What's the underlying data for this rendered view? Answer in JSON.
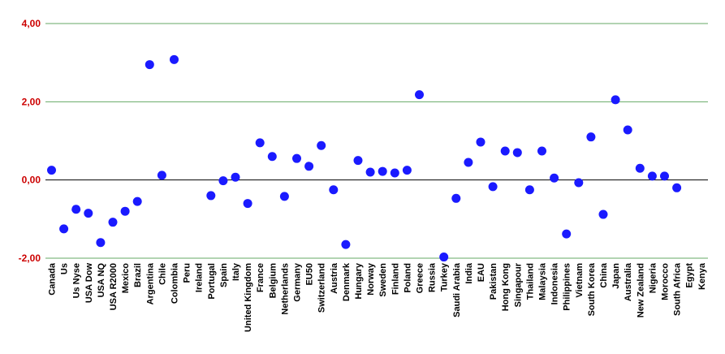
{
  "chart_data": {
    "type": "scatter",
    "ylim": [
      -2,
      4
    ],
    "yticks": [
      -2,
      0,
      2,
      4
    ],
    "ytick_labels": [
      "-2,00",
      "0,00",
      "2,00",
      "4,00"
    ],
    "grid": true,
    "colors": {
      "marker": "#1a1aff",
      "grid": "#66aa66",
      "zero_line": "#000000",
      "ytick": "#cc0000"
    },
    "categories": [
      "Canada",
      "Us",
      "Us Nyse",
      "USA Dow",
      "USA NQ",
      "USA R2000",
      "Mexico",
      "Brazil",
      "Argentina",
      "Chile",
      "Colombia",
      "Peru",
      "Ireland",
      "Portugal",
      "Spain",
      "Italy",
      "United Kingdom",
      "France",
      "Belgium",
      "Netherlands",
      "Germany",
      "EU50",
      "Switzerland",
      "Austria",
      "Denmark",
      "Hungary",
      "Norway",
      "Sweden",
      "Finland",
      "Poland",
      "Greece",
      "Russia",
      "Turkey",
      "Saudi Arabia",
      "India",
      "EAU",
      "Pakistan",
      "Hong Kong",
      "Singapour",
      "Thailand",
      "Malaysia",
      "Indonesia",
      "Philippines",
      "Vietnam",
      "South Korea",
      "China",
      "Japan",
      "Australia",
      "New Zealand",
      "Nigeria",
      "Morocco",
      "South Africa",
      "Egypt",
      "Kenya"
    ],
    "values": [
      0.25,
      -1.25,
      -0.75,
      -0.85,
      -1.6,
      -1.08,
      -0.8,
      -0.55,
      2.95,
      0.12,
      3.08,
      null,
      null,
      -0.4,
      -0.02,
      0.07,
      -0.6,
      0.95,
      0.6,
      -0.42,
      0.55,
      0.35,
      0.88,
      -0.25,
      -1.65,
      0.5,
      0.2,
      0.22,
      0.18,
      0.25,
      2.18,
      null,
      -1.97,
      -0.47,
      0.45,
      0.97,
      -0.17,
      0.74,
      0.7,
      -0.25,
      0.74,
      0.05,
      -1.38,
      -0.07,
      1.1,
      -0.88,
      2.05,
      1.28,
      0.3,
      0.1,
      0.1,
      -0.2,
      null,
      null
    ]
  }
}
